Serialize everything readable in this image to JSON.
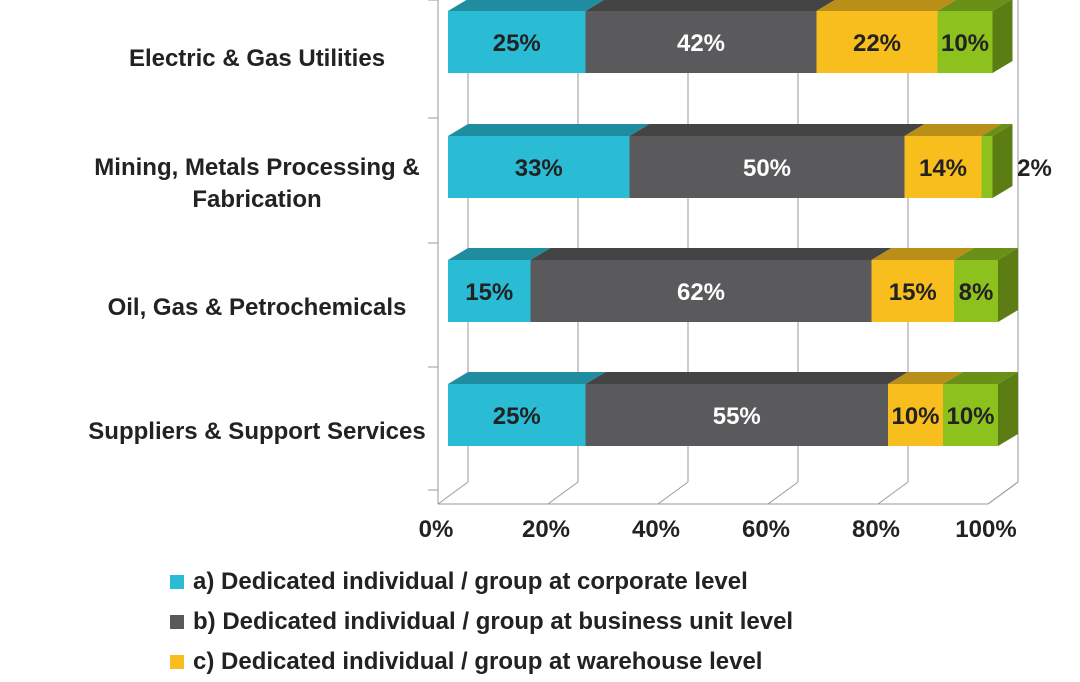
{
  "chart_data": {
    "type": "bar",
    "orientation": "horizontal",
    "stacked": true,
    "categories": [
      "Electric & Gas Utilities",
      "Mining, Metals Processing & Fabrication",
      "Oil, Gas & Petrochemicals",
      "Suppliers & Support Services"
    ],
    "category_lines": [
      [
        "Electric & Gas Utilities"
      ],
      [
        "Mining, Metals Processing &",
        "Fabrication"
      ],
      [
        "Oil, Gas & Petrochemicals"
      ],
      [
        "Suppliers & Support Services"
      ]
    ],
    "series": [
      {
        "name": "a) Dedicated individual / group at corporate level",
        "color": "#29BCD4",
        "values": [
          25,
          33,
          15,
          25
        ]
      },
      {
        "name": "b) Dedicated individual / group at business unit level",
        "color": "#5A5A5C",
        "values": [
          42,
          50,
          62,
          55
        ]
      },
      {
        "name": "c) Dedicated individual / group at warehouse level",
        "color": "#F7BE1E",
        "values": [
          22,
          14,
          15,
          10
        ]
      },
      {
        "name": "",
        "color": "#8DC11E",
        "values": [
          10,
          2,
          8,
          10
        ]
      }
    ],
    "data_labels": [
      [
        "25%",
        "33%",
        "15%",
        "25%"
      ],
      [
        "42%",
        "50%",
        "62%",
        "55%"
      ],
      [
        "22%",
        "14%",
        "15%",
        "10%"
      ],
      [
        "10%",
        "2%",
        "8%",
        "10%"
      ]
    ],
    "x_ticks": [
      "0%",
      "20%",
      "40%",
      "60%",
      "80%",
      "100%"
    ],
    "xlim": [
      0,
      100
    ],
    "grid": true,
    "legend_position": "bottom",
    "title": "",
    "xlabel": "",
    "ylabel": ""
  }
}
